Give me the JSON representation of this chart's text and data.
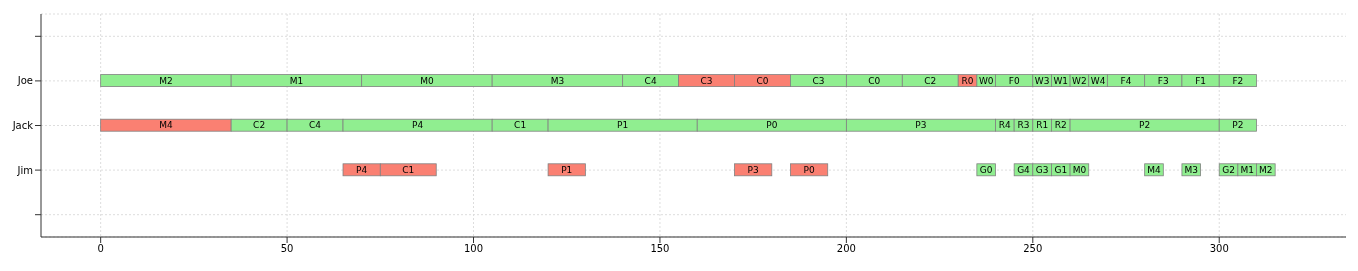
{
  "chart_data": {
    "type": "bar",
    "orientation": "horizontal",
    "categories": [
      null,
      "Joe",
      "Jack",
      "Jim",
      null
    ],
    "xlim": [
      -16,
      334
    ],
    "xticks": [
      0,
      50,
      100,
      150,
      200,
      250,
      300
    ],
    "grid": true,
    "series": [
      {
        "color": "#90ee90",
        "base": [
          null,
          0,
          null,
          null,
          null
        ],
        "values": [
          null,
          35,
          null,
          null,
          null
        ],
        "value_labels": [
          null,
          "M2",
          null,
          null,
          null
        ]
      },
      {
        "color": "#90ee90",
        "base": [
          null,
          35,
          null,
          null,
          null
        ],
        "values": [
          null,
          35,
          null,
          null,
          null
        ],
        "value_labels": [
          null,
          "M1",
          null,
          null,
          null
        ]
      },
      {
        "color": "#90ee90",
        "base": [
          null,
          70,
          null,
          null,
          null
        ],
        "values": [
          null,
          35,
          null,
          null,
          null
        ],
        "value_labels": [
          null,
          "M0",
          null,
          null,
          null
        ]
      },
      {
        "color": "#90ee90",
        "base": [
          null,
          105,
          null,
          null,
          null
        ],
        "values": [
          null,
          35,
          null,
          null,
          null
        ],
        "value_labels": [
          null,
          "M3",
          null,
          null,
          null
        ]
      },
      {
        "color": "#90ee90",
        "base": [
          null,
          140,
          null,
          null,
          null
        ],
        "values": [
          null,
          15,
          null,
          null,
          null
        ],
        "value_labels": [
          null,
          "C4",
          null,
          null,
          null
        ]
      },
      {
        "color": "#fa8072",
        "base": [
          null,
          155,
          null,
          null,
          null
        ],
        "values": [
          null,
          15,
          null,
          null,
          null
        ],
        "value_labels": [
          null,
          "C3",
          null,
          null,
          null
        ]
      },
      {
        "color": "#fa8072",
        "base": [
          null,
          170,
          null,
          null,
          null
        ],
        "values": [
          null,
          15,
          null,
          null,
          null
        ],
        "value_labels": [
          null,
          "C0",
          null,
          null,
          null
        ]
      },
      {
        "color": "#90ee90",
        "base": [
          null,
          185,
          null,
          null,
          null
        ],
        "values": [
          null,
          15,
          null,
          null,
          null
        ],
        "value_labels": [
          null,
          "C3",
          null,
          null,
          null
        ]
      },
      {
        "color": "#90ee90",
        "base": [
          null,
          200,
          null,
          null,
          null
        ],
        "values": [
          null,
          15,
          null,
          null,
          null
        ],
        "value_labels": [
          null,
          "C0",
          null,
          null,
          null
        ]
      },
      {
        "color": "#90ee90",
        "base": [
          null,
          215,
          null,
          null,
          null
        ],
        "values": [
          null,
          15,
          null,
          null,
          null
        ],
        "value_labels": [
          null,
          "C2",
          null,
          null,
          null
        ]
      },
      {
        "color": "#fa8072",
        "base": [
          null,
          230,
          null,
          null,
          null
        ],
        "values": [
          null,
          5,
          null,
          null,
          null
        ],
        "value_labels": [
          null,
          "R0",
          null,
          null,
          null
        ]
      },
      {
        "color": "#90ee90",
        "base": [
          null,
          235,
          null,
          null,
          null
        ],
        "values": [
          null,
          5,
          null,
          null,
          null
        ],
        "value_labels": [
          null,
          "W0",
          null,
          null,
          null
        ]
      },
      {
        "color": "#90ee90",
        "base": [
          null,
          240,
          null,
          null,
          null
        ],
        "values": [
          null,
          10,
          null,
          null,
          null
        ],
        "value_labels": [
          null,
          "F0",
          null,
          null,
          null
        ]
      },
      {
        "color": "#90ee90",
        "base": [
          null,
          250,
          null,
          null,
          null
        ],
        "values": [
          null,
          5,
          null,
          null,
          null
        ],
        "value_labels": [
          null,
          "W3",
          null,
          null,
          null
        ]
      },
      {
        "color": "#90ee90",
        "base": [
          null,
          255,
          null,
          null,
          null
        ],
        "values": [
          null,
          5,
          null,
          null,
          null
        ],
        "value_labels": [
          null,
          "W1",
          null,
          null,
          null
        ]
      },
      {
        "color": "#90ee90",
        "base": [
          null,
          260,
          null,
          null,
          null
        ],
        "values": [
          null,
          5,
          null,
          null,
          null
        ],
        "value_labels": [
          null,
          "W2",
          null,
          null,
          null
        ]
      },
      {
        "color": "#90ee90",
        "base": [
          null,
          265,
          null,
          null,
          null
        ],
        "values": [
          null,
          5,
          null,
          null,
          null
        ],
        "value_labels": [
          null,
          "W4",
          null,
          null,
          null
        ]
      },
      {
        "color": "#90ee90",
        "base": [
          null,
          270,
          null,
          null,
          null
        ],
        "values": [
          null,
          10,
          null,
          null,
          null
        ],
        "value_labels": [
          null,
          "F4",
          null,
          null,
          null
        ]
      },
      {
        "color": "#90ee90",
        "base": [
          null,
          280,
          null,
          null,
          null
        ],
        "values": [
          null,
          10,
          null,
          null,
          null
        ],
        "value_labels": [
          null,
          "F3",
          null,
          null,
          null
        ]
      },
      {
        "color": "#90ee90",
        "base": [
          null,
          290,
          null,
          null,
          null
        ],
        "values": [
          null,
          10,
          null,
          null,
          null
        ],
        "value_labels": [
          null,
          "F1",
          null,
          null,
          null
        ]
      },
      {
        "color": "#90ee90",
        "base": [
          null,
          300,
          null,
          null,
          null
        ],
        "values": [
          null,
          10,
          null,
          null,
          null
        ],
        "value_labels": [
          null,
          "F2",
          null,
          null,
          null
        ]
      },
      {
        "color": "#fa8072",
        "base": [
          null,
          null,
          0,
          null,
          null
        ],
        "values": [
          null,
          null,
          35,
          null,
          null
        ],
        "value_labels": [
          null,
          null,
          "M4",
          null,
          null
        ]
      },
      {
        "color": "#90ee90",
        "base": [
          null,
          null,
          35,
          null,
          null
        ],
        "values": [
          null,
          null,
          15,
          null,
          null
        ],
        "value_labels": [
          null,
          null,
          "C2",
          null,
          null
        ]
      },
      {
        "color": "#90ee90",
        "base": [
          null,
          null,
          50,
          null,
          null
        ],
        "values": [
          null,
          null,
          15,
          null,
          null
        ],
        "value_labels": [
          null,
          null,
          "C4",
          null,
          null
        ]
      },
      {
        "color": "#90ee90",
        "base": [
          null,
          null,
          65,
          null,
          null
        ],
        "values": [
          null,
          null,
          40,
          null,
          null
        ],
        "value_labels": [
          null,
          null,
          "P4",
          null,
          null
        ]
      },
      {
        "color": "#90ee90",
        "base": [
          null,
          null,
          105,
          null,
          null
        ],
        "values": [
          null,
          null,
          15,
          null,
          null
        ],
        "value_labels": [
          null,
          null,
          "C1",
          null,
          null
        ]
      },
      {
        "color": "#90ee90",
        "base": [
          null,
          null,
          120,
          null,
          null
        ],
        "values": [
          null,
          null,
          40,
          null,
          null
        ],
        "value_labels": [
          null,
          null,
          "P1",
          null,
          null
        ]
      },
      {
        "color": "#90ee90",
        "base": [
          null,
          null,
          160,
          null,
          null
        ],
        "values": [
          null,
          null,
          40,
          null,
          null
        ],
        "value_labels": [
          null,
          null,
          "P0",
          null,
          null
        ]
      },
      {
        "color": "#90ee90",
        "base": [
          null,
          null,
          200,
          null,
          null
        ],
        "values": [
          null,
          null,
          40,
          null,
          null
        ],
        "value_labels": [
          null,
          null,
          "P3",
          null,
          null
        ]
      },
      {
        "color": "#90ee90",
        "base": [
          null,
          null,
          240,
          null,
          null
        ],
        "values": [
          null,
          null,
          5,
          null,
          null
        ],
        "value_labels": [
          null,
          null,
          "R4",
          null,
          null
        ]
      },
      {
        "color": "#90ee90",
        "base": [
          null,
          null,
          245,
          null,
          null
        ],
        "values": [
          null,
          null,
          5,
          null,
          null
        ],
        "value_labels": [
          null,
          null,
          "R3",
          null,
          null
        ]
      },
      {
        "color": "#90ee90",
        "base": [
          null,
          null,
          250,
          null,
          null
        ],
        "values": [
          null,
          null,
          5,
          null,
          null
        ],
        "value_labels": [
          null,
          null,
          "R1",
          null,
          null
        ]
      },
      {
        "color": "#90ee90",
        "base": [
          null,
          null,
          255,
          null,
          null
        ],
        "values": [
          null,
          null,
          5,
          null,
          null
        ],
        "value_labels": [
          null,
          null,
          "R2",
          null,
          null
        ]
      },
      {
        "color": "#90ee90",
        "base": [
          null,
          null,
          260,
          null,
          null
        ],
        "values": [
          null,
          null,
          40,
          null,
          null
        ],
        "value_labels": [
          null,
          null,
          "P2",
          null,
          null
        ]
      },
      {
        "color": "#90ee90",
        "base": [
          null,
          null,
          300,
          null,
          null
        ],
        "values": [
          null,
          null,
          10,
          null,
          null
        ],
        "value_labels": [
          null,
          null,
          "P2",
          null,
          null
        ]
      },
      {
        "color": "#fa8072",
        "base": [
          null,
          null,
          null,
          65,
          null
        ],
        "values": [
          null,
          null,
          null,
          10,
          null
        ],
        "value_labels": [
          null,
          null,
          null,
          "P4",
          null
        ]
      },
      {
        "color": "#fa8072",
        "base": [
          null,
          null,
          null,
          75,
          null
        ],
        "values": [
          null,
          null,
          null,
          15,
          null
        ],
        "value_labels": [
          null,
          null,
          null,
          "C1",
          null
        ]
      },
      {
        "color": "#fa8072",
        "base": [
          null,
          null,
          null,
          120,
          null
        ],
        "values": [
          null,
          null,
          null,
          10,
          null
        ],
        "value_labels": [
          null,
          null,
          null,
          "P1",
          null
        ]
      },
      {
        "color": "#fa8072",
        "base": [
          null,
          null,
          null,
          170,
          null
        ],
        "values": [
          null,
          null,
          null,
          10,
          null
        ],
        "value_labels": [
          null,
          null,
          null,
          "P3",
          null
        ]
      },
      {
        "color": "#fa8072",
        "base": [
          null,
          null,
          null,
          185,
          null
        ],
        "values": [
          null,
          null,
          null,
          10,
          null
        ],
        "value_labels": [
          null,
          null,
          null,
          "P0",
          null
        ]
      },
      {
        "color": "#90ee90",
        "base": [
          null,
          null,
          null,
          235,
          null
        ],
        "values": [
          null,
          null,
          null,
          5,
          null
        ],
        "value_labels": [
          null,
          null,
          null,
          "G0",
          null
        ]
      },
      {
        "color": "#90ee90",
        "base": [
          null,
          null,
          null,
          245,
          null
        ],
        "values": [
          null,
          null,
          null,
          5,
          null
        ],
        "value_labels": [
          null,
          null,
          null,
          "G4",
          null
        ]
      },
      {
        "color": "#90ee90",
        "base": [
          null,
          null,
          null,
          250,
          null
        ],
        "values": [
          null,
          null,
          null,
          5,
          null
        ],
        "value_labels": [
          null,
          null,
          null,
          "G3",
          null
        ]
      },
      {
        "color": "#90ee90",
        "base": [
          null,
          null,
          null,
          255,
          null
        ],
        "values": [
          null,
          null,
          null,
          5,
          null
        ],
        "value_labels": [
          null,
          null,
          null,
          "G1",
          null
        ]
      },
      {
        "color": "#90ee90",
        "base": [
          null,
          null,
          null,
          260,
          null
        ],
        "values": [
          null,
          null,
          null,
          5,
          null
        ],
        "value_labels": [
          null,
          null,
          null,
          "M0",
          null
        ]
      },
      {
        "color": "#90ee90",
        "base": [
          null,
          null,
          null,
          280,
          null
        ],
        "values": [
          null,
          null,
          null,
          5,
          null
        ],
        "value_labels": [
          null,
          null,
          null,
          "M4",
          null
        ]
      },
      {
        "color": "#90ee90",
        "base": [
          null,
          null,
          null,
          290,
          null
        ],
        "values": [
          null,
          null,
          null,
          5,
          null
        ],
        "value_labels": [
          null,
          null,
          null,
          "M3",
          null
        ]
      },
      {
        "color": "#90ee90",
        "base": [
          null,
          null,
          null,
          300,
          null
        ],
        "values": [
          null,
          null,
          null,
          5,
          null
        ],
        "value_labels": [
          null,
          null,
          null,
          "G2",
          null
        ]
      },
      {
        "color": "#90ee90",
        "base": [
          null,
          null,
          null,
          305,
          null
        ],
        "values": [
          null,
          null,
          null,
          5,
          null
        ],
        "value_labels": [
          null,
          null,
          null,
          "M1",
          null
        ]
      },
      {
        "color": "#90ee90",
        "base": [
          null,
          null,
          null,
          310,
          null
        ],
        "values": [
          null,
          null,
          null,
          5,
          null
        ],
        "value_labels": [
          null,
          null,
          null,
          "M2",
          null
        ]
      }
    ]
  }
}
